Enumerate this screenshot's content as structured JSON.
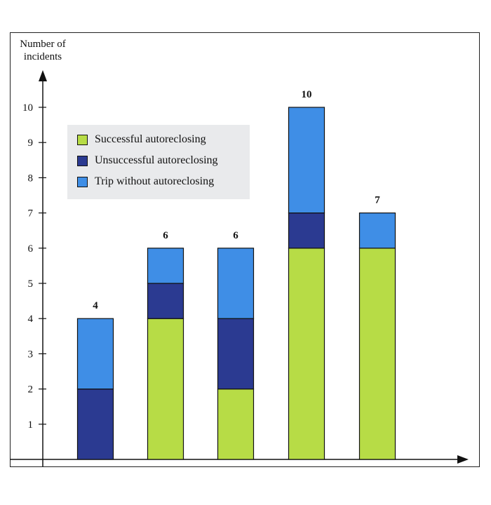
{
  "chart_data": {
    "type": "bar",
    "stacked": true,
    "ylabel": "Number of incidents",
    "xlabel": "",
    "ylim": [
      0,
      10
    ],
    "yticks": [
      "1",
      "2",
      "3",
      "4",
      "5",
      "6",
      "7",
      "8",
      "9",
      "10"
    ],
    "categories": [
      "",
      "",
      "",
      "",
      ""
    ],
    "totals": [
      "4",
      "6",
      "6",
      "10",
      "7"
    ],
    "series": [
      {
        "name": "Successful autoreclosing",
        "color": "#b7dc46",
        "values": [
          0,
          4,
          2,
          6,
          6
        ]
      },
      {
        "name": "Unsuccessful autoreclosing",
        "color": "#2b3a91",
        "values": [
          2,
          1,
          2,
          1,
          0
        ]
      },
      {
        "name": "Trip without autoreclosing",
        "color": "#3f8ee6",
        "values": [
          2,
          1,
          2,
          3,
          1
        ]
      }
    ],
    "legend_position": "top-left",
    "grid": false
  }
}
